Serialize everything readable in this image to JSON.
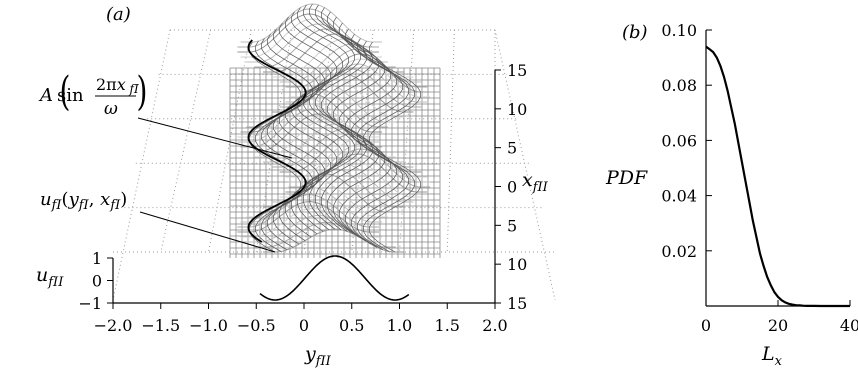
{
  "panel_a": {
    "label": "(a)",
    "annotation_1": "A sin(2πx fI / ω)",
    "annotation_2": "u fI (y fI , x fI )",
    "chart_data": {
      "type": "surface",
      "xlabel": "y fII",
      "ylabel": "x fII",
      "zlabel": "u fII",
      "x_ticks": [
        "-2.0",
        "-1.5",
        "-1.0",
        "-0.5",
        "0",
        "0.5",
        "1.0",
        "1.5",
        "2.0"
      ],
      "depth_ticks": [
        "15",
        "10",
        "5",
        "0",
        "5",
        "10",
        "15"
      ],
      "z_ticks": [
        "1",
        "0",
        "-1"
      ],
      "xlim": [
        -2.0,
        2.0
      ],
      "zlim": [
        -1,
        1
      ]
    }
  },
  "panel_b": {
    "label": "(b)",
    "chart_data": {
      "type": "line",
      "xlabel": "L x",
      "ylabel": "PDF",
      "x_ticks": [
        "0",
        "20",
        "40"
      ],
      "y_ticks": [
        "0.10",
        "0.08",
        "0.06",
        "0.04",
        "0.02"
      ],
      "xlim": [
        0,
        40
      ],
      "ylim": [
        0,
        0.1
      ],
      "series": [
        {
          "x": [
            0,
            1,
            2,
            3,
            4,
            5,
            6,
            7,
            8,
            9,
            10,
            11,
            12,
            13,
            14,
            15,
            16,
            17,
            18,
            19,
            20,
            21,
            22,
            23,
            24,
            25,
            26,
            27,
            28,
            30,
            32,
            35,
            38,
            40
          ],
          "y": [
            0.094,
            0.093,
            0.092,
            0.09,
            0.087,
            0.083,
            0.078,
            0.072,
            0.066,
            0.059,
            0.052,
            0.045,
            0.038,
            0.031,
            0.025,
            0.019,
            0.0145,
            0.0105,
            0.0075,
            0.005,
            0.0033,
            0.0021,
            0.0013,
            0.0008,
            0.0005,
            0.0003,
            0.0002,
            0.0001,
            5e-05,
            2e-05,
            1e-05,
            0,
            0,
            0
          ]
        }
      ]
    }
  }
}
